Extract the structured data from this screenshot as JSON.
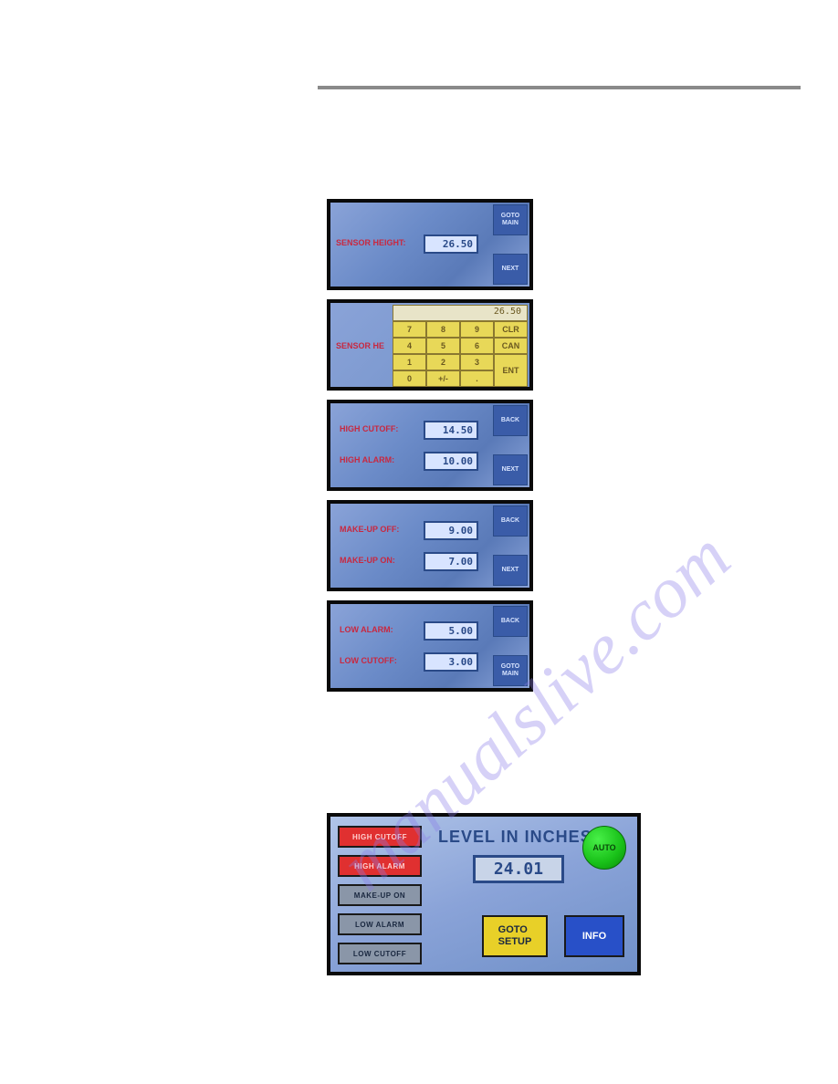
{
  "colors": {
    "hr": "#8a8a8a",
    "screen_bg_a": "#8aa3d8",
    "screen_bg_b": "#6b8bc8",
    "screen_border": "#0a0a0a",
    "side_btn_bg": "#3a5ca8",
    "side_btn_text": "#d8e4ff",
    "label_text": "#c82840",
    "value_bg": "#d8e4ff",
    "value_border": "#2a4a88",
    "value_text": "#2a4a88",
    "key_bg": "#e8d858",
    "key_border": "#8a7830",
    "key_text": "#6a5820",
    "status_red_bg": "#e03030",
    "status_grey_bg": "#8a96a8",
    "auto_green": "#18c018",
    "goto_yellow": "#e8d028",
    "info_blue": "#2850c8",
    "watermark": "#8a7ae8"
  },
  "watermark_text": "manualslive.com",
  "screen1": {
    "label": "SENSOR HEIGHT:",
    "value": "26.50",
    "btn_top": "GOTO MAIN",
    "btn_bottom": "NEXT"
  },
  "screen2": {
    "label": "SENSOR HE",
    "display": "26.50",
    "keys": [
      "7",
      "8",
      "9",
      "CLR",
      "4",
      "5",
      "6",
      "CAN",
      "1",
      "2",
      "3",
      "0",
      "+/-",
      ".",
      "ENT"
    ]
  },
  "screen3": {
    "label1": "HIGH CUTOFF:",
    "value1": "14.50",
    "label2": "HIGH ALARM:",
    "value2": "10.00",
    "btn_top": "BACK",
    "btn_bottom": "NEXT"
  },
  "screen4": {
    "label1": "MAKE-UP OFF:",
    "value1": "9.00",
    "label2": "MAKE-UP ON:",
    "value2": "7.00",
    "btn_top": "BACK",
    "btn_bottom": "NEXT"
  },
  "screen5": {
    "label1": "LOW ALARM:",
    "value1": "5.00",
    "label2": "LOW CUTOFF:",
    "value2": "3.00",
    "btn_top": "BACK",
    "btn_bottom": "GOTO MAIN"
  },
  "main": {
    "title": "LEVEL IN INCHES",
    "value": "24.01",
    "auto": "AUTO",
    "goto": "GOTO SETUP",
    "info": "INFO",
    "status": [
      {
        "label": "HIGH CUTOFF",
        "style": "red"
      },
      {
        "label": "HIGH ALARM",
        "style": "red"
      },
      {
        "label": "MAKE-UP ON",
        "style": "grey"
      },
      {
        "label": "LOW ALARM",
        "style": "grey"
      },
      {
        "label": "LOW CUTOFF",
        "style": "grey"
      }
    ]
  }
}
